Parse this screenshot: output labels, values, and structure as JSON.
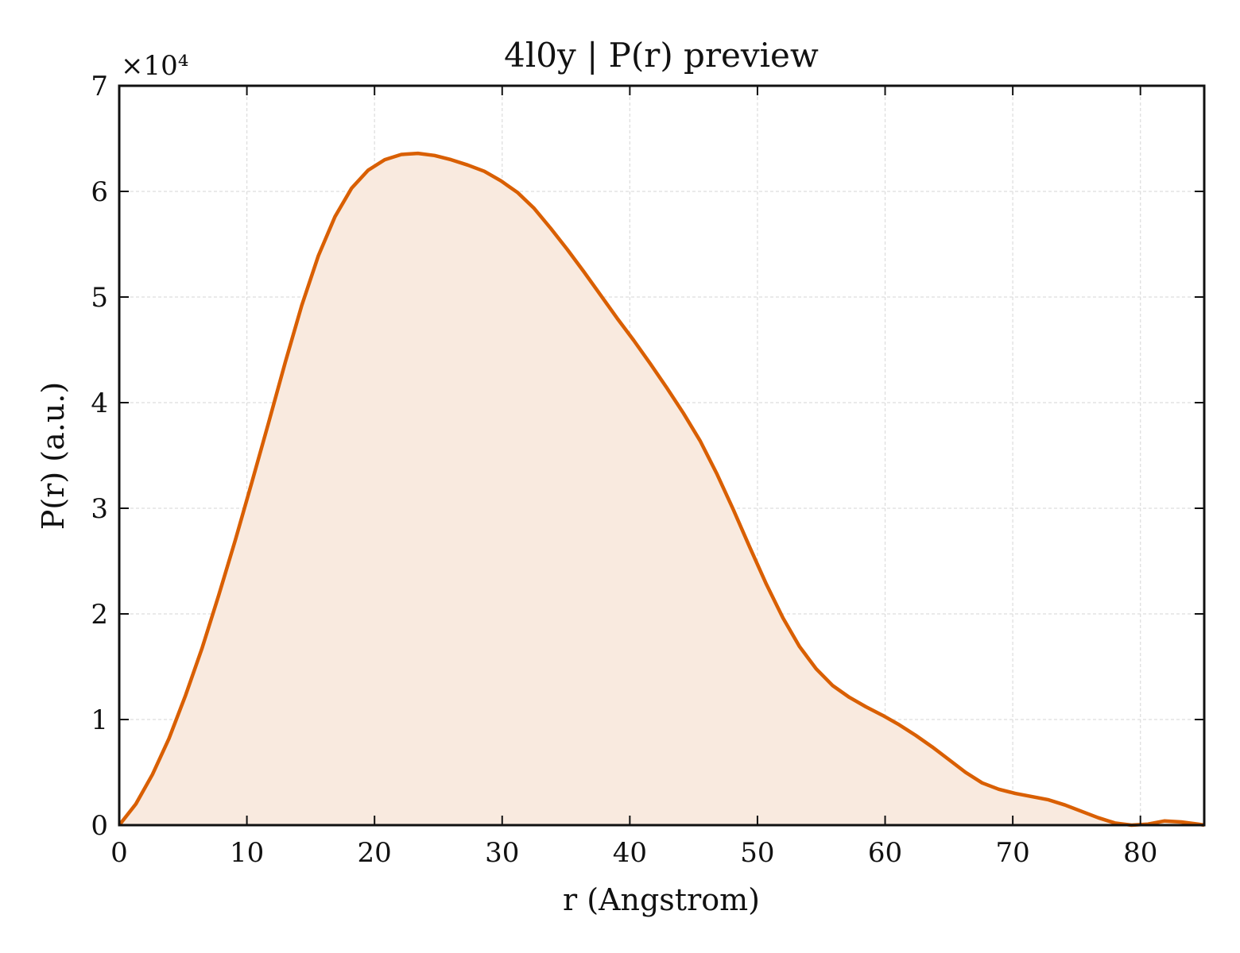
{
  "chart_data": {
    "type": "area",
    "title": "4l0y | P(r) preview",
    "xlabel": "r (Angstrom)",
    "ylabel": "P(r) (a.u.)",
    "y_multiplier_label": "×10⁴",
    "y_scale_factor": 10000,
    "xlim": [
      0,
      85
    ],
    "ylim": [
      0,
      70000
    ],
    "x_ticks": [
      0,
      10,
      20,
      30,
      40,
      50,
      60,
      70,
      80
    ],
    "x_tick_labels": [
      "0",
      "10",
      "20",
      "30",
      "40",
      "50",
      "60",
      "70",
      "80"
    ],
    "y_ticks": [
      0,
      10000,
      20000,
      30000,
      40000,
      50000,
      60000,
      70000
    ],
    "y_tick_labels": [
      "0",
      "1",
      "2",
      "3",
      "4",
      "5",
      "6",
      "7"
    ],
    "grid": true,
    "colors": {
      "line": "#d95f02",
      "fill": "#f9eadf",
      "grid": "#dddddd",
      "frame": "#111111"
    },
    "series": [
      {
        "x": [
          0,
          1.3,
          2.6,
          3.9,
          5.2,
          6.5,
          7.8,
          9.1,
          10.4,
          11.7,
          13.0,
          14.3,
          15.6,
          16.9,
          18.2,
          19.5,
          20.8,
          22.1,
          23.4,
          24.7,
          26.0,
          27.3,
          28.6,
          29.9,
          31.2,
          32.5,
          33.8,
          35.1,
          36.4,
          37.7,
          39.0,
          40.3,
          41.6,
          42.9,
          44.2,
          45.5,
          46.8,
          48.1,
          49.4,
          50.7,
          52.0,
          53.3,
          54.6,
          55.9,
          57.2,
          58.5,
          59.8,
          61.1,
          62.4,
          63.7,
          65.0,
          66.3,
          67.6,
          68.9,
          70.2,
          71.5,
          72.8,
          74.1,
          75.4,
          76.7,
          78.0,
          79.3,
          80.6,
          81.9,
          83.2,
          84.5,
          85.0
        ],
        "y": [
          0,
          2000,
          4800,
          8200,
          12300,
          16800,
          21800,
          27000,
          32500,
          38100,
          43800,
          49200,
          53900,
          57600,
          60300,
          62000,
          63000,
          63500,
          63600,
          63400,
          63000,
          62500,
          61900,
          61000,
          59900,
          58400,
          56500,
          54500,
          52400,
          50200,
          48000,
          45900,
          43700,
          41400,
          39000,
          36400,
          33300,
          29900,
          26300,
          22800,
          19600,
          16900,
          14800,
          13200,
          12100,
          11200,
          10400,
          9500,
          8500,
          7400,
          6200,
          5000,
          4000,
          3400,
          3000,
          2700,
          2400,
          1900,
          1300,
          700,
          200,
          0,
          100,
          400,
          300,
          100,
          0
        ]
      }
    ]
  }
}
